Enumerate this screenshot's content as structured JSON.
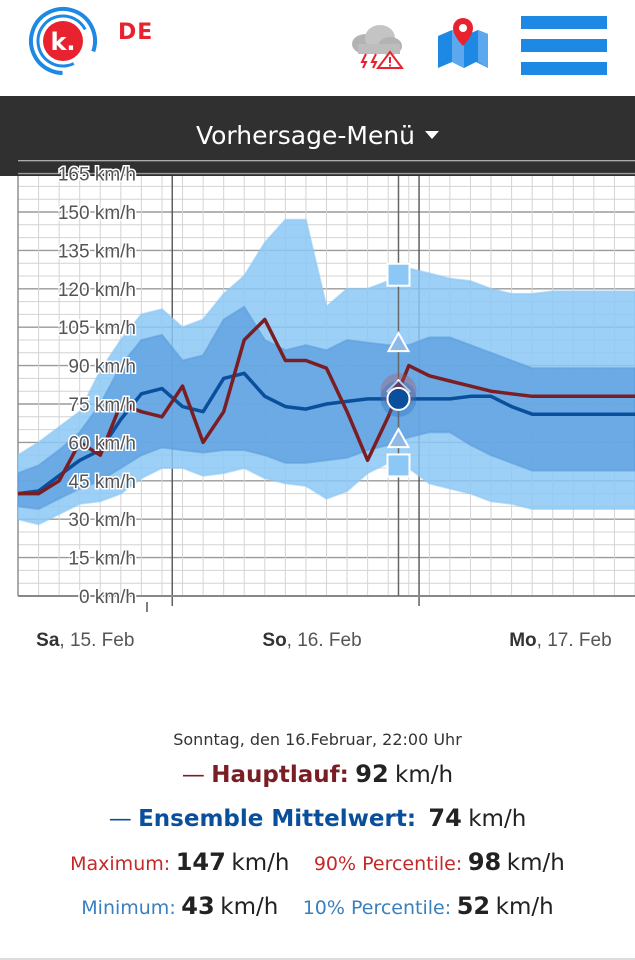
{
  "header": {
    "country": "DE",
    "logo_letter": "k.",
    "icons": [
      "thunderstorm-warning-icon",
      "map-location-icon",
      "hamburger-menu-icon"
    ],
    "menu_label": "Vorhersage-Menü"
  },
  "colors": {
    "brand_red": "#e8232f",
    "brand_blue": "#1e88e5",
    "main_run": "#7b1e24",
    "ensemble_mean": "#0a4f9c",
    "band_outer": "#8cc8f5",
    "band_inner": "#5b9ede",
    "max_label": "#c62828",
    "min_label": "#3a7fbf"
  },
  "chart_data": {
    "type": "area",
    "yticks": [
      "0 km/h",
      "15 km/h",
      "30 km/h",
      "45 km/h",
      "60 km/h",
      "75 km/h",
      "90 km/h",
      "105 km/h",
      "120 km/h",
      "135 km/h",
      "150 km/h",
      "165 km/h"
    ],
    "ylim": [
      0,
      165
    ],
    "xlim": [
      0,
      30
    ],
    "day_labels": [
      {
        "x": 0.3,
        "bold": "Sa",
        "rest": ", 15. Feb"
      },
      {
        "x": 11.3,
        "bold": "So",
        "rest": ", 16. Feb"
      },
      {
        "x": 23.3,
        "bold": "Mo",
        "rest": ", 17. Feb"
      }
    ],
    "day_dividers": [
      7.5,
      19.5
    ],
    "selected_x": 18.5,
    "x": [
      0,
      1,
      2,
      3,
      4,
      5,
      6,
      7,
      8,
      9,
      10,
      11,
      12,
      13,
      14,
      15,
      16,
      17,
      18,
      19,
      20,
      21,
      22,
      23,
      24,
      25,
      26,
      27,
      28,
      29,
      30
    ],
    "series": [
      {
        "name": "Hauptlauf",
        "values": [
          40,
          40,
          45,
          60,
          55,
          75,
          72,
          70,
          82,
          60,
          72,
          100,
          108,
          92,
          92,
          89,
          72,
          53,
          70,
          90,
          86,
          84,
          82,
          80,
          79,
          78,
          78,
          78,
          78,
          78,
          78
        ]
      },
      {
        "name": "Ensemble Mittelwert",
        "values": [
          40,
          41,
          47,
          53,
          57,
          69,
          79,
          81,
          74,
          72,
          85,
          87,
          78,
          74,
          73,
          75,
          76,
          77,
          77,
          77,
          77,
          77,
          78,
          78,
          74,
          71,
          71,
          71,
          71,
          71,
          71
        ]
      },
      {
        "name": "Maximum",
        "values": [
          55,
          60,
          66,
          72,
          88,
          100,
          110,
          112,
          105,
          108,
          118,
          125,
          138,
          147,
          147,
          113,
          120,
          120,
          123,
          128,
          126,
          124,
          123,
          120,
          118,
          118,
          119,
          119,
          119,
          119,
          119
        ]
      },
      {
        "name": "90% Percentile",
        "values": [
          48,
          51,
          57,
          64,
          75,
          90,
          100,
          102,
          92,
          94,
          108,
          113,
          100,
          96,
          98,
          96,
          100,
          99,
          98,
          98,
          101,
          101,
          98,
          95,
          92,
          89,
          89,
          89,
          89,
          89,
          89
        ]
      },
      {
        "name": "10% Percentile",
        "values": [
          35,
          34,
          38,
          42,
          45,
          50,
          55,
          58,
          57,
          56,
          57,
          57,
          55,
          52,
          52,
          53,
          54,
          57,
          59,
          62,
          64,
          64,
          59,
          55,
          52,
          49,
          49,
          49,
          49,
          49,
          49
        ]
      },
      {
        "name": "Minimum",
        "values": [
          30,
          28,
          32,
          36,
          37,
          40,
          46,
          50,
          50,
          47,
          48,
          50,
          46,
          44,
          43,
          38,
          41,
          48,
          52,
          50,
          44,
          42,
          40,
          37,
          36,
          34,
          34,
          34,
          34,
          34,
          34
        ]
      }
    ]
  },
  "info": {
    "date_time": "Sonntag, den 16.Februar, 22:00 Uhr",
    "hauptlauf_label": "Hauptlauf",
    "hauptlauf_value": "92",
    "ensemble_label": "Ensemble Mittelwert",
    "ensemble_value": "74",
    "maximum_label": "Maximum:",
    "maximum_value": "147",
    "p90_label": "90% Percentile:",
    "p90_value": "98",
    "minimum_label": "Minimum:",
    "minimum_value": "43",
    "p10_label": "10% Percentile:",
    "p10_value": "52",
    "unit": "km/h"
  }
}
